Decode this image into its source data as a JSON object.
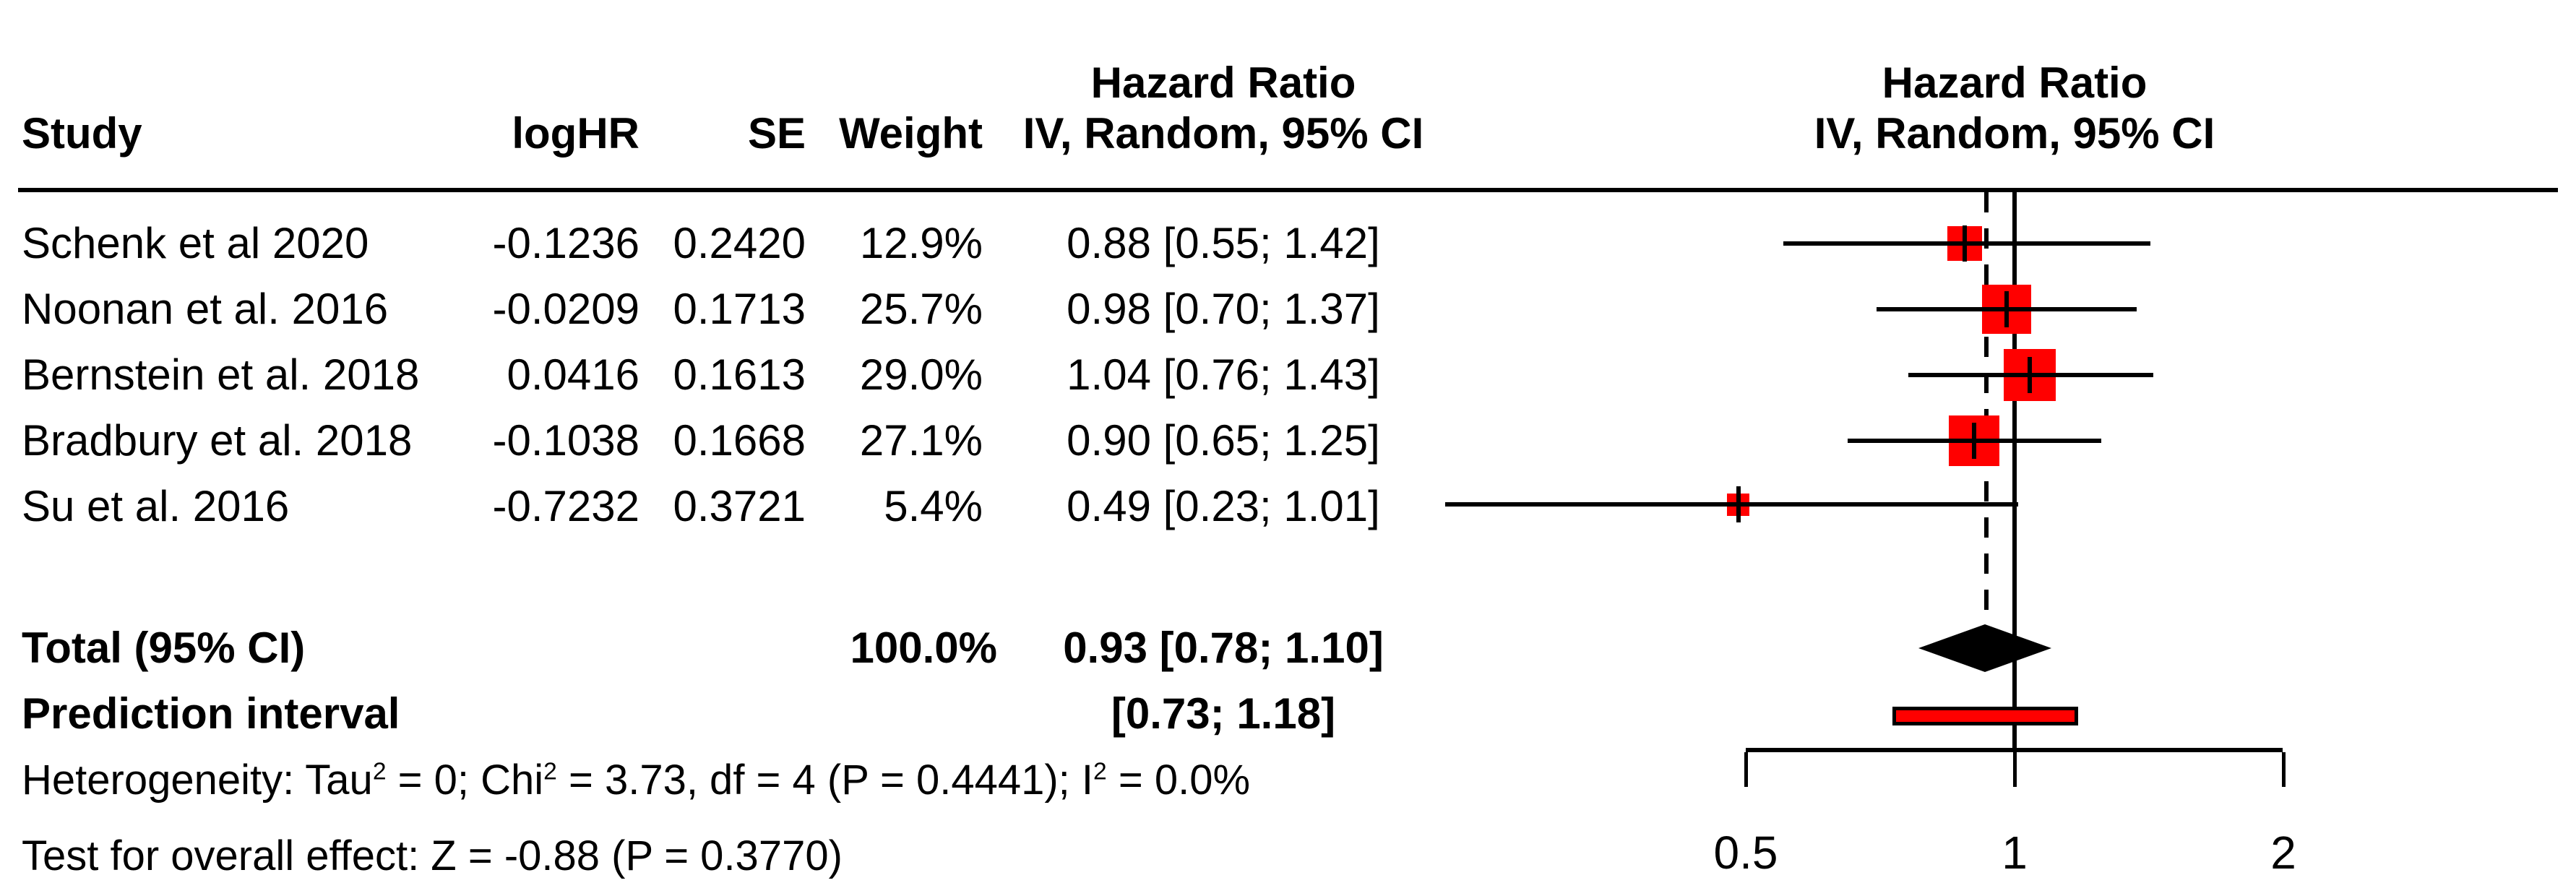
{
  "header": {
    "study": "Study",
    "loghr": "logHR",
    "se": "SE",
    "weight": "Weight",
    "hr_title": "Hazard Ratio",
    "hr_subtitle": "IV, Random, 95% CI",
    "plot_title": "Hazard Ratio",
    "plot_subtitle": "IV, Random, 95% CI"
  },
  "chart_data": {
    "type": "forest",
    "x_scale": "log",
    "axis_ticks": [
      "0.5",
      "1",
      "2"
    ],
    "axis_tick_values": [
      0.5,
      1,
      2
    ],
    "ref_line": 1,
    "pooled_estimate": 0.93,
    "studies": [
      {
        "name": "Schenk et al 2020",
        "loghr": "-0.1236",
        "se": "0.2420",
        "weight": "12.9%",
        "weight_pct": 12.9,
        "hr": 0.88,
        "ci_low": 0.55,
        "ci_high": 1.42,
        "ci_text": "0.88 [0.55; 1.42]"
      },
      {
        "name": "Noonan et al. 2016",
        "loghr": "-0.0209",
        "se": "0.1713",
        "weight": "25.7%",
        "weight_pct": 25.7,
        "hr": 0.98,
        "ci_low": 0.7,
        "ci_high": 1.37,
        "ci_text": "0.98 [0.70; 1.37]"
      },
      {
        "name": "Bernstein et al. 2018",
        "loghr": "0.0416",
        "se": "0.1613",
        "weight": "29.0%",
        "weight_pct": 29.0,
        "hr": 1.04,
        "ci_low": 0.76,
        "ci_high": 1.43,
        "ci_text": "1.04 [0.76; 1.43]"
      },
      {
        "name": "Bradbury et al. 2018",
        "loghr": "-0.1038",
        "se": "0.1668",
        "weight": "27.1%",
        "weight_pct": 27.1,
        "hr": 0.9,
        "ci_low": 0.65,
        "ci_high": 1.25,
        "ci_text": "0.90 [0.65; 1.25]"
      },
      {
        "name": "Su et al. 2016",
        "loghr": "-0.7232",
        "se": "0.3721",
        "weight": "5.4%",
        "weight_pct": 5.4,
        "hr": 0.49,
        "ci_low": 0.23,
        "ci_high": 1.01,
        "ci_text": "0.49 [0.23; 1.01]"
      }
    ],
    "total": {
      "label": "Total (95% CI)",
      "weight": "100.0%",
      "hr": 0.93,
      "ci_low": 0.78,
      "ci_high": 1.1,
      "ci_text": "0.93 [0.78; 1.10]"
    },
    "prediction": {
      "label": "Prediction interval",
      "low": 0.73,
      "high": 1.18,
      "ci_text": "[0.73; 1.18]"
    }
  },
  "footer": {
    "het_p1": "Heterogeneity: Tau",
    "het_sup1": "2",
    "het_p2": " = 0; Chi",
    "het_sup2": "2",
    "het_p3": " = 3.73, df = 4 (P = 0.4441); I",
    "het_sup3": "2",
    "het_p4": " = 0.0%",
    "test": "Test for overall effect: Z = -0.88 (P = 0.3770)"
  },
  "colors": {
    "marker": "#ff0000",
    "prediction_fill": "#ff0000",
    "line": "#000000",
    "background": "#ffffff"
  }
}
